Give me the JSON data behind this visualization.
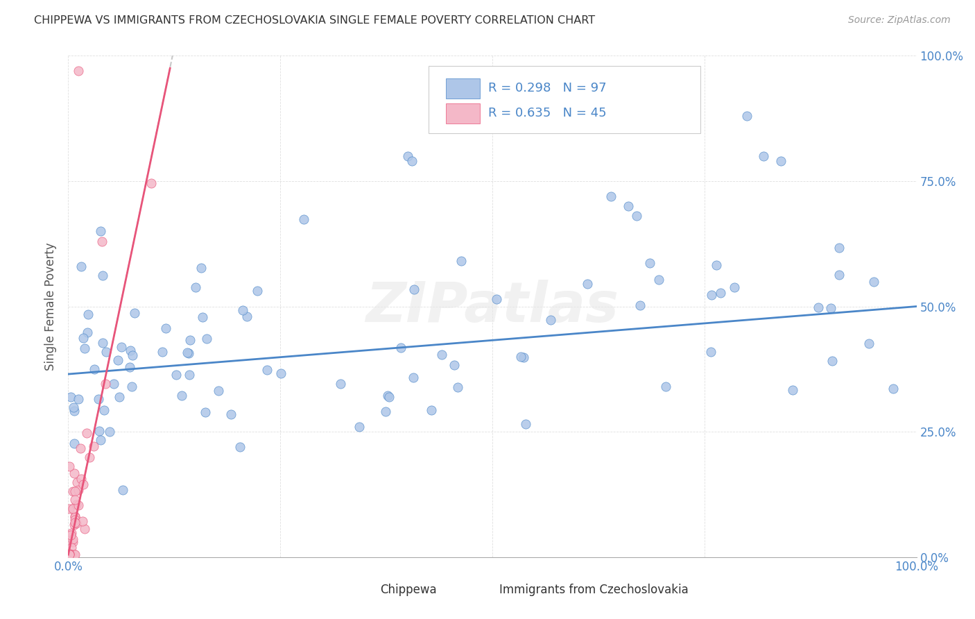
{
  "title": "CHIPPEWA VS IMMIGRANTS FROM CZECHOSLOVAKIA SINGLE FEMALE POVERTY CORRELATION CHART",
  "source": "Source: ZipAtlas.com",
  "ylabel": "Single Female Poverty",
  "xlim": [
    0.0,
    1.0
  ],
  "ylim": [
    0.0,
    1.0
  ],
  "ytick_labels": [
    "0.0%",
    "25.0%",
    "50.0%",
    "75.0%",
    "100.0%"
  ],
  "ytick_positions": [
    0.0,
    0.25,
    0.5,
    0.75,
    1.0
  ],
  "xtick_positions": [
    0.0,
    0.25,
    0.5,
    0.75,
    1.0
  ],
  "xtick_labels": [
    "0.0%",
    "",
    "",
    "",
    "100.0%"
  ],
  "background_color": "#ffffff",
  "chippewa_color": "#aec6e8",
  "czech_color": "#f4b8c8",
  "trendline_chippewa_color": "#4a86c8",
  "trendline_czech_color": "#e8547a",
  "trendline_dashed_color": "#c8c8c8",
  "grid_color": "#d8d8d8",
  "legend_R1": "0.298",
  "legend_N1": "97",
  "legend_R2": "0.635",
  "legend_N2": "45",
  "legend_text_color": "#4a86c8",
  "legend_label_color": "#333333",
  "watermark_color": "#e8e8e8",
  "title_color": "#333333",
  "source_color": "#999999",
  "ylabel_color": "#555555",
  "chip_trendline": [
    0.0,
    1.0,
    0.365,
    0.5
  ],
  "czech_trendline_solid": [
    0.0,
    0.12,
    0.005,
    0.975
  ],
  "czech_trendline_dashed": [
    0.0,
    0.16,
    0.005,
    1.3
  ]
}
